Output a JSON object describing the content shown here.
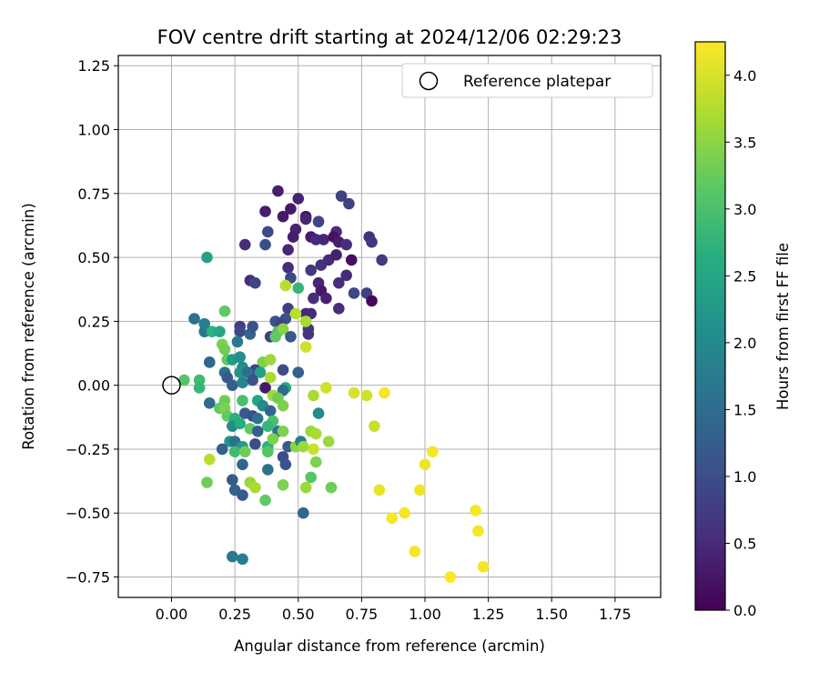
{
  "chart_data": {
    "type": "scatter",
    "title": "FOV centre drift starting at 2024/12/06 02:29:23",
    "xlabel": "Angular distance from reference (arcmin)",
    "ylabel": "Rotation from reference (arcmin)",
    "xlim": [
      -0.21,
      1.93
    ],
    "ylim": [
      -0.83,
      1.29
    ],
    "xticks": [
      "0.00",
      "0.25",
      "0.50",
      "0.75",
      "1.00",
      "1.25",
      "1.50",
      "1.75"
    ],
    "yticks": [
      "−0.75",
      "−0.50",
      "−0.25",
      "0.00",
      "0.25",
      "0.50",
      "0.75",
      "1.00",
      "1.25"
    ],
    "grid": true,
    "legend": {
      "position": "top-right",
      "entries": [
        "Reference platepar"
      ]
    },
    "reference_point": {
      "x": 0.0,
      "y": 0.0
    },
    "colorbar": {
      "label": "Hours from first FF file",
      "colormap": "viridis",
      "range": [
        0.0,
        4.25
      ],
      "ticks": [
        "0.0",
        "0.5",
        "1.0",
        "1.5",
        "2.0",
        "2.5",
        "3.0",
        "3.5",
        "4.0"
      ]
    },
    "points": [
      {
        "x": 0.42,
        "y": 0.76,
        "h": 0.35
      },
      {
        "x": 0.5,
        "y": 0.73,
        "h": 0.4
      },
      {
        "x": 0.47,
        "y": 0.69,
        "h": 0.3
      },
      {
        "x": 0.37,
        "y": 0.68,
        "h": 0.35
      },
      {
        "x": 0.44,
        "y": 0.66,
        "h": 0.3
      },
      {
        "x": 0.53,
        "y": 0.66,
        "h": 0.2
      },
      {
        "x": 0.53,
        "y": 0.65,
        "h": 0.45
      },
      {
        "x": 0.58,
        "y": 0.64,
        "h": 0.85
      },
      {
        "x": 0.67,
        "y": 0.74,
        "h": 0.8
      },
      {
        "x": 0.7,
        "y": 0.71,
        "h": 0.8
      },
      {
        "x": 0.38,
        "y": 0.6,
        "h": 0.95
      },
      {
        "x": 0.49,
        "y": 0.61,
        "h": 0.4
      },
      {
        "x": 0.65,
        "y": 0.6,
        "h": 0.55
      },
      {
        "x": 0.29,
        "y": 0.55,
        "h": 0.55
      },
      {
        "x": 0.37,
        "y": 0.55,
        "h": 1.0
      },
      {
        "x": 0.48,
        "y": 0.58,
        "h": 0.35
      },
      {
        "x": 0.55,
        "y": 0.58,
        "h": 0.3
      },
      {
        "x": 0.57,
        "y": 0.57,
        "h": 0.5
      },
      {
        "x": 0.6,
        "y": 0.57,
        "h": 0.45
      },
      {
        "x": 0.64,
        "y": 0.58,
        "h": 0.2
      },
      {
        "x": 0.66,
        "y": 0.56,
        "h": 0.35
      },
      {
        "x": 0.69,
        "y": 0.55,
        "h": 0.55
      },
      {
        "x": 0.78,
        "y": 0.58,
        "h": 0.6
      },
      {
        "x": 0.79,
        "y": 0.56,
        "h": 0.65
      },
      {
        "x": 0.46,
        "y": 0.53,
        "h": 0.45
      },
      {
        "x": 0.55,
        "y": 0.45,
        "h": 0.7
      },
      {
        "x": 0.59,
        "y": 0.47,
        "h": 0.6
      },
      {
        "x": 0.62,
        "y": 0.49,
        "h": 0.5
      },
      {
        "x": 0.65,
        "y": 0.51,
        "h": 0.4
      },
      {
        "x": 0.71,
        "y": 0.49,
        "h": 0.15
      },
      {
        "x": 0.83,
        "y": 0.49,
        "h": 0.75
      },
      {
        "x": 0.46,
        "y": 0.46,
        "h": 0.55
      },
      {
        "x": 0.47,
        "y": 0.42,
        "h": 0.9
      },
      {
        "x": 0.58,
        "y": 0.4,
        "h": 0.45
      },
      {
        "x": 0.59,
        "y": 0.37,
        "h": 0.3
      },
      {
        "x": 0.66,
        "y": 0.4,
        "h": 0.55
      },
      {
        "x": 0.69,
        "y": 0.43,
        "h": 0.5
      },
      {
        "x": 0.31,
        "y": 0.41,
        "h": 0.55
      },
      {
        "x": 0.33,
        "y": 0.4,
        "h": 0.85
      },
      {
        "x": 0.72,
        "y": 0.36,
        "h": 0.9
      },
      {
        "x": 0.77,
        "y": 0.36,
        "h": 0.85
      },
      {
        "x": 0.79,
        "y": 0.33,
        "h": 0.1
      },
      {
        "x": 0.56,
        "y": 0.34,
        "h": 0.55
      },
      {
        "x": 0.61,
        "y": 0.34,
        "h": 0.4
      },
      {
        "x": 0.66,
        "y": 0.3,
        "h": 0.55
      },
      {
        "x": 0.46,
        "y": 0.3,
        "h": 0.8
      },
      {
        "x": 0.53,
        "y": 0.28,
        "h": 0.45
      },
      {
        "x": 0.55,
        "y": 0.28,
        "h": 0.5
      },
      {
        "x": 0.45,
        "y": 0.26,
        "h": 1.05
      },
      {
        "x": 0.41,
        "y": 0.25,
        "h": 1.1
      },
      {
        "x": 0.43,
        "y": 0.24,
        "h": 0.85
      },
      {
        "x": 0.54,
        "y": 0.22,
        "h": 0.7
      },
      {
        "x": 0.54,
        "y": 0.2,
        "h": 0.65
      },
      {
        "x": 0.45,
        "y": 0.39,
        "h": 3.8
      },
      {
        "x": 0.5,
        "y": 0.38,
        "h": 2.8
      },
      {
        "x": 0.49,
        "y": 0.28,
        "h": 3.8
      },
      {
        "x": 0.53,
        "y": 0.25,
        "h": 3.7
      },
      {
        "x": 0.42,
        "y": 0.21,
        "h": 3.1
      },
      {
        "x": 0.44,
        "y": 0.22,
        "h": 3.5
      },
      {
        "x": 0.53,
        "y": 0.15,
        "h": 3.95
      },
      {
        "x": 0.09,
        "y": 0.26,
        "h": 1.6
      },
      {
        "x": 0.13,
        "y": 0.24,
        "h": 1.8
      },
      {
        "x": 0.13,
        "y": 0.21,
        "h": 1.7
      },
      {
        "x": 0.16,
        "y": 0.21,
        "h": 2.7
      },
      {
        "x": 0.19,
        "y": 0.21,
        "h": 2.5
      },
      {
        "x": 0.21,
        "y": 0.29,
        "h": 3.2
      },
      {
        "x": 0.27,
        "y": 0.23,
        "h": 0.75
      },
      {
        "x": 0.27,
        "y": 0.21,
        "h": 0.9
      },
      {
        "x": 0.31,
        "y": 0.2,
        "h": 1.4
      },
      {
        "x": 0.32,
        "y": 0.23,
        "h": 1.1
      },
      {
        "x": 0.39,
        "y": 0.19,
        "h": 0.8
      },
      {
        "x": 0.41,
        "y": 0.19,
        "h": 3.2
      },
      {
        "x": 0.47,
        "y": 0.19,
        "h": 1.2
      },
      {
        "x": 0.26,
        "y": 0.17,
        "h": 1.7
      },
      {
        "x": 0.2,
        "y": 0.16,
        "h": 3.4
      },
      {
        "x": 0.21,
        "y": 0.14,
        "h": 3.3
      },
      {
        "x": 0.14,
        "y": 0.5,
        "h": 2.4
      },
      {
        "x": 0.22,
        "y": 0.1,
        "h": 3.2
      },
      {
        "x": 0.24,
        "y": 0.1,
        "h": 2.3
      },
      {
        "x": 0.27,
        "y": 0.11,
        "h": 2.1
      },
      {
        "x": 0.36,
        "y": 0.09,
        "h": 3.4
      },
      {
        "x": 0.39,
        "y": 0.1,
        "h": 3.6
      },
      {
        "x": 0.15,
        "y": 0.09,
        "h": 1.4
      },
      {
        "x": 0.28,
        "y": 0.07,
        "h": 2.0
      },
      {
        "x": 0.33,
        "y": 0.06,
        "h": 0.9
      },
      {
        "x": 0.21,
        "y": 0.05,
        "h": 1.6
      },
      {
        "x": 0.22,
        "y": 0.03,
        "h": 1.2
      },
      {
        "x": 0.27,
        "y": 0.05,
        "h": 2.2
      },
      {
        "x": 0.3,
        "y": 0.05,
        "h": 1.6
      },
      {
        "x": 0.35,
        "y": 0.05,
        "h": 2.4
      },
      {
        "x": 0.39,
        "y": 0.03,
        "h": 3.7
      },
      {
        "x": 0.44,
        "y": 0.06,
        "h": 1.0
      },
      {
        "x": 0.5,
        "y": 0.05,
        "h": 1.3
      },
      {
        "x": 0.05,
        "y": 0.02,
        "h": 3.1
      },
      {
        "x": 0.11,
        "y": 0.02,
        "h": 2.9
      },
      {
        "x": 0.11,
        "y": -0.01,
        "h": 2.8
      },
      {
        "x": 0.24,
        "y": 0.0,
        "h": 1.3
      },
      {
        "x": 0.28,
        "y": 0.01,
        "h": 1.9
      },
      {
        "x": 0.32,
        "y": 0.02,
        "h": 1.1
      },
      {
        "x": 0.37,
        "y": -0.01,
        "h": 0.3
      },
      {
        "x": 0.45,
        "y": -0.01,
        "h": 2.6
      },
      {
        "x": 0.44,
        "y": -0.02,
        "h": 1.5
      },
      {
        "x": 0.15,
        "y": -0.07,
        "h": 1.5
      },
      {
        "x": 0.21,
        "y": -0.06,
        "h": 3.3
      },
      {
        "x": 0.28,
        "y": -0.06,
        "h": 3.0
      },
      {
        "x": 0.34,
        "y": -0.06,
        "h": 2.5
      },
      {
        "x": 0.36,
        "y": -0.08,
        "h": 2.0
      },
      {
        "x": 0.4,
        "y": -0.04,
        "h": 3.6
      },
      {
        "x": 0.42,
        "y": -0.05,
        "h": 3.3
      },
      {
        "x": 0.19,
        "y": -0.09,
        "h": 3.2
      },
      {
        "x": 0.21,
        "y": -0.09,
        "h": 3.4
      },
      {
        "x": 0.22,
        "y": -0.12,
        "h": 3.2
      },
      {
        "x": 0.25,
        "y": -0.13,
        "h": 2.7
      },
      {
        "x": 0.29,
        "y": -0.11,
        "h": 1.2
      },
      {
        "x": 0.32,
        "y": -0.12,
        "h": 1.0
      },
      {
        "x": 0.34,
        "y": -0.13,
        "h": 1.6
      },
      {
        "x": 0.39,
        "y": -0.1,
        "h": 1.4
      },
      {
        "x": 0.4,
        "y": -0.14,
        "h": 3.0
      },
      {
        "x": 0.44,
        "y": -0.08,
        "h": 3.4
      },
      {
        "x": 0.58,
        "y": -0.11,
        "h": 2.0
      },
      {
        "x": 0.24,
        "y": -0.16,
        "h": 2.0
      },
      {
        "x": 0.27,
        "y": -0.15,
        "h": 2.6
      },
      {
        "x": 0.31,
        "y": -0.17,
        "h": 3.2
      },
      {
        "x": 0.34,
        "y": -0.18,
        "h": 1.3
      },
      {
        "x": 0.38,
        "y": -0.16,
        "h": 2.8
      },
      {
        "x": 0.42,
        "y": -0.18,
        "h": 1.6
      },
      {
        "x": 0.44,
        "y": -0.18,
        "h": 3.4
      },
      {
        "x": 0.55,
        "y": -0.18,
        "h": 3.6
      },
      {
        "x": 0.57,
        "y": -0.19,
        "h": 3.7
      },
      {
        "x": 0.23,
        "y": -0.22,
        "h": 2.2
      },
      {
        "x": 0.25,
        "y": -0.22,
        "h": 1.6
      },
      {
        "x": 0.28,
        "y": -0.24,
        "h": 2.3
      },
      {
        "x": 0.33,
        "y": -0.23,
        "h": 1.0
      },
      {
        "x": 0.38,
        "y": -0.24,
        "h": 2.7
      },
      {
        "x": 0.4,
        "y": -0.21,
        "h": 3.4
      },
      {
        "x": 0.46,
        "y": -0.24,
        "h": 1.2
      },
      {
        "x": 0.49,
        "y": -0.24,
        "h": 3.5
      },
      {
        "x": 0.51,
        "y": -0.22,
        "h": 1.8
      },
      {
        "x": 0.52,
        "y": -0.24,
        "h": 3.6
      },
      {
        "x": 0.56,
        "y": -0.25,
        "h": 3.9
      },
      {
        "x": 0.62,
        "y": -0.22,
        "h": 3.6
      },
      {
        "x": 0.2,
        "y": -0.25,
        "h": 1.3
      },
      {
        "x": 0.25,
        "y": -0.26,
        "h": 2.9
      },
      {
        "x": 0.29,
        "y": -0.26,
        "h": 3.3
      },
      {
        "x": 0.38,
        "y": -0.26,
        "h": 3.1
      },
      {
        "x": 0.44,
        "y": -0.28,
        "h": 1.0
      },
      {
        "x": 0.45,
        "y": -0.31,
        "h": 1.1
      },
      {
        "x": 0.57,
        "y": -0.3,
        "h": 3.4
      },
      {
        "x": 0.15,
        "y": -0.29,
        "h": 3.8
      },
      {
        "x": 0.28,
        "y": -0.31,
        "h": 1.4
      },
      {
        "x": 0.38,
        "y": -0.33,
        "h": 1.6
      },
      {
        "x": 0.55,
        "y": -0.36,
        "h": 3.1
      },
      {
        "x": 0.24,
        "y": -0.37,
        "h": 1.2
      },
      {
        "x": 0.31,
        "y": -0.38,
        "h": 3.6
      },
      {
        "x": 0.14,
        "y": -0.38,
        "h": 3.3
      },
      {
        "x": 0.33,
        "y": -0.4,
        "h": 3.7
      },
      {
        "x": 0.44,
        "y": -0.39,
        "h": 3.4
      },
      {
        "x": 0.53,
        "y": -0.4,
        "h": 3.6
      },
      {
        "x": 0.63,
        "y": -0.4,
        "h": 3.3
      },
      {
        "x": 0.25,
        "y": -0.41,
        "h": 1.3
      },
      {
        "x": 0.28,
        "y": -0.43,
        "h": 1.2
      },
      {
        "x": 0.37,
        "y": -0.45,
        "h": 3.2
      },
      {
        "x": 0.52,
        "y": -0.5,
        "h": 1.4
      },
      {
        "x": 0.24,
        "y": -0.67,
        "h": 1.7
      },
      {
        "x": 0.28,
        "y": -0.68,
        "h": 1.8
      },
      {
        "x": 0.61,
        "y": -0.01,
        "h": 3.95
      },
      {
        "x": 0.56,
        "y": -0.04,
        "h": 3.7
      },
      {
        "x": 0.72,
        "y": -0.03,
        "h": 4.0
      },
      {
        "x": 0.77,
        "y": -0.04,
        "h": 3.95
      },
      {
        "x": 0.84,
        "y": -0.03,
        "h": 4.2
      },
      {
        "x": 0.8,
        "y": -0.16,
        "h": 3.9
      },
      {
        "x": 0.82,
        "y": -0.41,
        "h": 4.1
      },
      {
        "x": 0.87,
        "y": -0.52,
        "h": 4.2
      },
      {
        "x": 0.92,
        "y": -0.5,
        "h": 4.2
      },
      {
        "x": 0.96,
        "y": -0.65,
        "h": 4.2
      },
      {
        "x": 0.98,
        "y": -0.41,
        "h": 4.15
      },
      {
        "x": 1.0,
        "y": -0.31,
        "h": 4.15
      },
      {
        "x": 1.03,
        "y": -0.26,
        "h": 4.2
      },
      {
        "x": 1.1,
        "y": -0.75,
        "h": 4.25
      },
      {
        "x": 1.2,
        "y": -0.49,
        "h": 4.2
      },
      {
        "x": 1.21,
        "y": -0.57,
        "h": 4.2
      },
      {
        "x": 1.23,
        "y": -0.71,
        "h": 4.2
      }
    ]
  }
}
